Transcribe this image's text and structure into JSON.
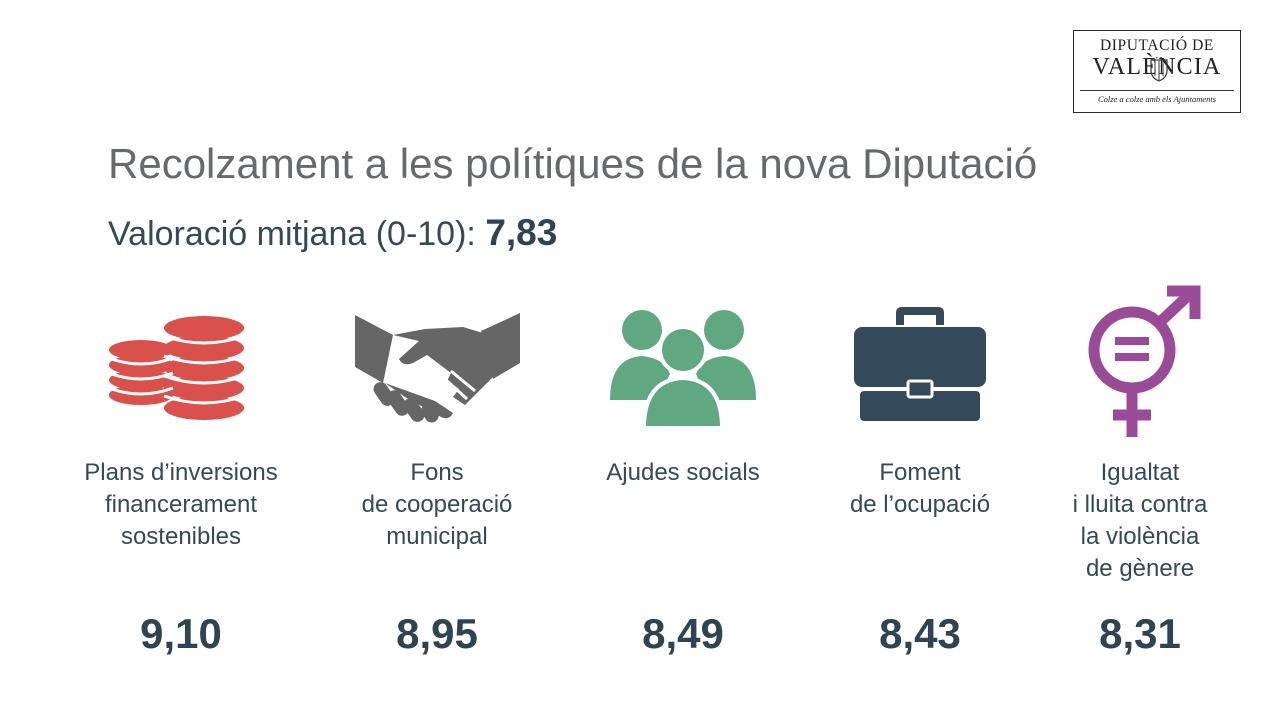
{
  "logo": {
    "line1": "DIPUTACIÓ DE",
    "line2": "VALÈNCIA",
    "motto": "Colze a colze amb els Ajuntaments"
  },
  "title": "Recolzament a les polítiques de la nova Diputació",
  "subtitle": {
    "label": "Valoració mitjana (0-10):",
    "value": "7,83"
  },
  "items": [
    {
      "label": "Plans d’inversions\nfinancerament\nsostenibles",
      "score": "9,10",
      "icon": "coins-icon",
      "color": "#d9504c"
    },
    {
      "label": "Fons\nde cooperació\nmunicipal",
      "score": "8,95",
      "icon": "handshake-icon",
      "color": "#666666"
    },
    {
      "label": "Ajudes socials",
      "score": "8,49",
      "icon": "people-group-icon",
      "color": "#5fa882"
    },
    {
      "label": "Foment\nde l’ocupació",
      "score": "8,43",
      "icon": "briefcase-icon",
      "color": "#34495a"
    },
    {
      "label": "Igualtat\ni lluita contra\nla violència\nde gènere",
      "score": "8,31",
      "icon": "gender-equality-icon",
      "color": "#9a4b98"
    }
  ]
}
